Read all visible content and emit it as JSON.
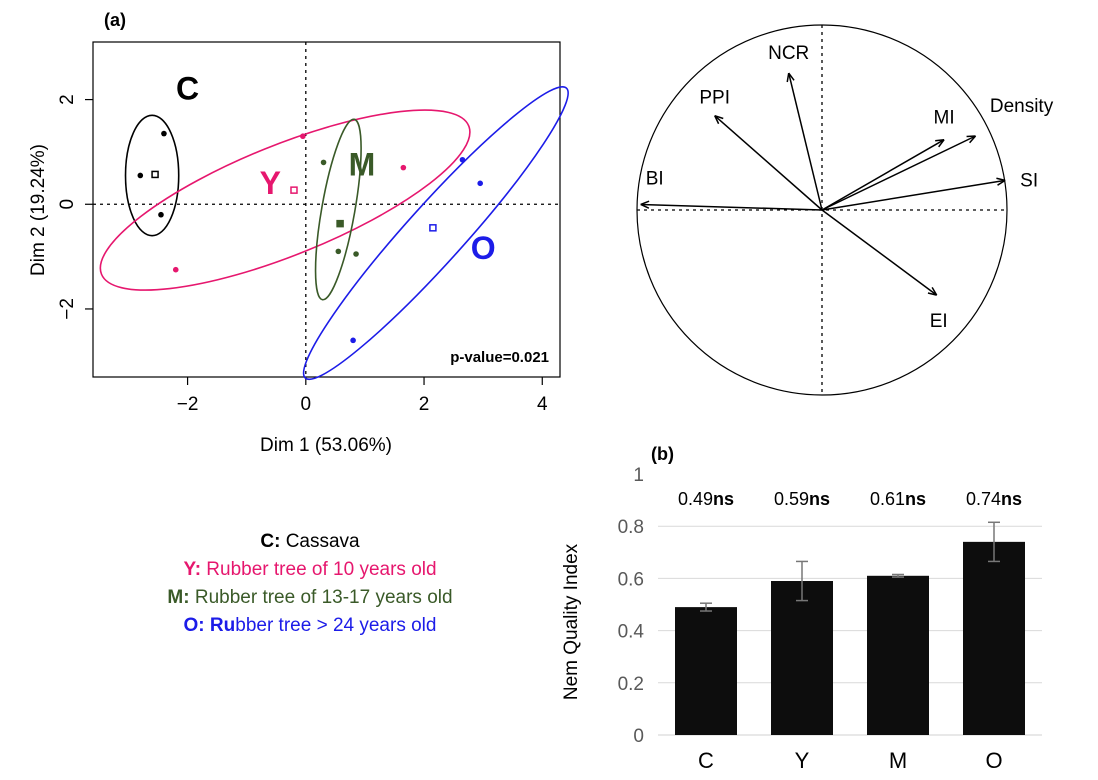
{
  "colors": {
    "C": "#000000",
    "Y": "#e6176e",
    "M": "#3a5a28",
    "O": "#1c1ce8",
    "bar": "#0d0d0d",
    "grid": "#d9d9d9",
    "axis": "#595959"
  },
  "chart_data": [
    {
      "type": "scatter",
      "panel_label": "(a)",
      "xlabel": "Dim 1 (53.06%)",
      "ylabel": "Dim 2 (19.24%)",
      "xlim": [
        -3.6,
        4.3
      ],
      "ylim": [
        -3.3,
        3.1
      ],
      "x_ticks": [
        -2,
        0,
        2,
        4
      ],
      "x_tick_labels": [
        "−2",
        "0",
        "2",
        "4"
      ],
      "y_ticks": [
        -2,
        0,
        2
      ],
      "y_tick_labels": [
        "−2",
        "0",
        "2"
      ],
      "annotation": "p-value=0.021",
      "groups": [
        {
          "label": "C",
          "color_key": "C",
          "points": [
            [
              -2.4,
              1.35
            ],
            [
              -2.8,
              0.55
            ],
            [
              -2.45,
              -0.2
            ]
          ],
          "centroid": [
            -2.55,
            0.57
          ],
          "ellipse": {
            "cx": -2.6,
            "cy": 0.55,
            "rx": 0.45,
            "ry": 1.15,
            "angle": 0
          },
          "label_pos": [
            -2.0,
            2.0
          ]
        },
        {
          "label": "Y",
          "color_key": "Y",
          "points": [
            [
              -2.2,
              -1.25
            ],
            [
              -0.05,
              1.3
            ],
            [
              1.65,
              0.7
            ]
          ],
          "centroid": [
            -0.2,
            0.27
          ],
          "ellipse": {
            "cx": -0.35,
            "cy": 0.08,
            "rx": 3.35,
            "ry": 1.05,
            "angle": 22
          },
          "label_pos": [
            -0.6,
            0.2
          ]
        },
        {
          "label": "M",
          "color_key": "M",
          "points": [
            [
              0.3,
              0.8
            ],
            [
              0.55,
              -0.9
            ],
            [
              0.85,
              -0.95
            ]
          ],
          "centroid": [
            0.58,
            -0.37
          ],
          "ellipse": {
            "cx": 0.55,
            "cy": -0.1,
            "rx": 0.28,
            "ry": 1.75,
            "angle": -10
          },
          "label_pos": [
            0.95,
            0.55
          ]
        },
        {
          "label": "O",
          "color_key": "O",
          "points": [
            [
              2.65,
              0.85
            ],
            [
              2.95,
              0.4
            ],
            [
              0.8,
              -2.6
            ]
          ],
          "centroid": [
            2.15,
            -0.45
          ],
          "ellipse": {
            "cx": 2.2,
            "cy": -0.55,
            "rx": 3.3,
            "ry": 0.55,
            "angle": 48
          },
          "label_pos": [
            3.0,
            -1.05
          ]
        }
      ]
    },
    {
      "type": "biplot",
      "description_labels": [
        "NCR",
        "PPI",
        "MI",
        "Density",
        "SI",
        "BI",
        "EI"
      ],
      "variables": [
        {
          "name": "NCR",
          "x": -0.18,
          "y": 0.74
        },
        {
          "name": "PPI",
          "x": -0.58,
          "y": 0.51
        },
        {
          "name": "MI",
          "x": 0.66,
          "y": 0.38
        },
        {
          "name": "Density",
          "x": 0.83,
          "y": 0.4
        },
        {
          "name": "SI",
          "x": 0.99,
          "y": 0.16
        },
        {
          "name": "BI",
          "x": -0.98,
          "y": 0.03
        },
        {
          "name": "EI",
          "x": 0.62,
          "y": -0.46
        }
      ]
    },
    {
      "type": "bar",
      "panel_label": "(b)",
      "ylabel": "Nem Quality Index",
      "categories": [
        "C",
        "Y",
        "M",
        "O"
      ],
      "values": [
        0.49,
        0.59,
        0.61,
        0.74
      ],
      "errors": [
        0.015,
        0.075,
        0.005,
        0.075
      ],
      "annotations": [
        {
          "value": "0.49",
          "sig": "ns"
        },
        {
          "value": "0.59",
          "sig": "ns"
        },
        {
          "value": "0.61",
          "sig": "ns"
        },
        {
          "value": "0.74",
          "sig": "ns"
        }
      ],
      "ylim": [
        0,
        1
      ],
      "y_ticks": [
        0,
        0.2,
        0.4,
        0.6,
        0.8,
        1
      ],
      "y_tick_labels": [
        "0",
        "0.2",
        "0.4",
        "0.6",
        "0.8",
        "1"
      ],
      "grid": true
    }
  ],
  "legend": [
    {
      "key": "C:",
      "text": " Cassava",
      "key_color": "C",
      "text_color": "C"
    },
    {
      "key": "Y:",
      "text": " Rubber tree of 10 years old",
      "key_color": "Y",
      "text_color": "Y"
    },
    {
      "key": "M:",
      "text": " Rubber tree of 13-17 years old",
      "key_color": "M",
      "text_color": "M"
    },
    {
      "key": "O: Ru",
      "text": "bber tree > 24 years old",
      "key_color": "O",
      "text_color": "O"
    }
  ]
}
